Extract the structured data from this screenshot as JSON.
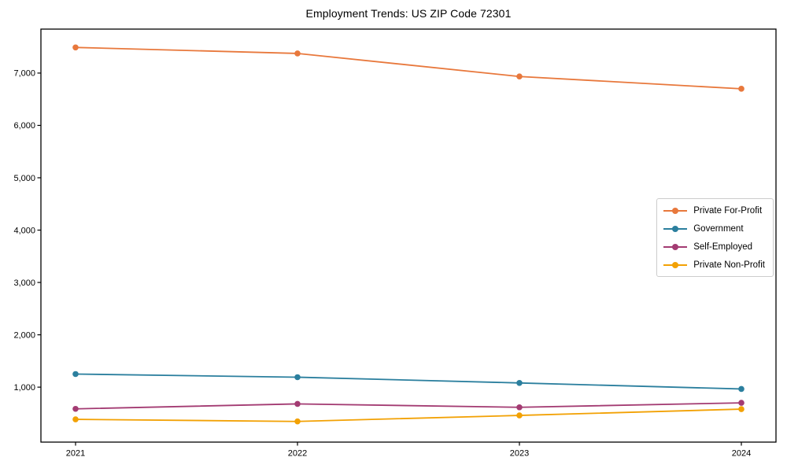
{
  "title": "Employment Trends: US ZIP Code 72301",
  "chart_data": {
    "type": "line",
    "title": "Employment Trends: US ZIP Code 72301",
    "xlabel": "",
    "ylabel": "",
    "categories": [
      "2021",
      "2022",
      "2023",
      "2024"
    ],
    "series": [
      {
        "name": "Private For-Profit",
        "color": "#e8783c",
        "values": [
          7490,
          7375,
          6935,
          6700
        ]
      },
      {
        "name": "Government",
        "color": "#2b7f9e",
        "values": [
          1250,
          1190,
          1080,
          965
        ]
      },
      {
        "name": "Self-Employed",
        "color": "#a33b72",
        "values": [
          585,
          680,
          615,
          700
        ]
      },
      {
        "name": "Private Non-Profit",
        "color": "#f2a104",
        "values": [
          385,
          345,
          460,
          580
        ]
      }
    ],
    "ylim": [
      -50,
      7840
    ],
    "yticks": [
      1000,
      2000,
      3000,
      4000,
      5000,
      6000,
      7000
    ],
    "ytick_labels": [
      "1,000",
      "2,000",
      "3,000",
      "4,000",
      "5,000",
      "6,000",
      "7,000"
    ],
    "grid": false,
    "marker": "circle",
    "legend_position": "center right",
    "axis_color": "#000000",
    "background_color": "#ffffff"
  }
}
